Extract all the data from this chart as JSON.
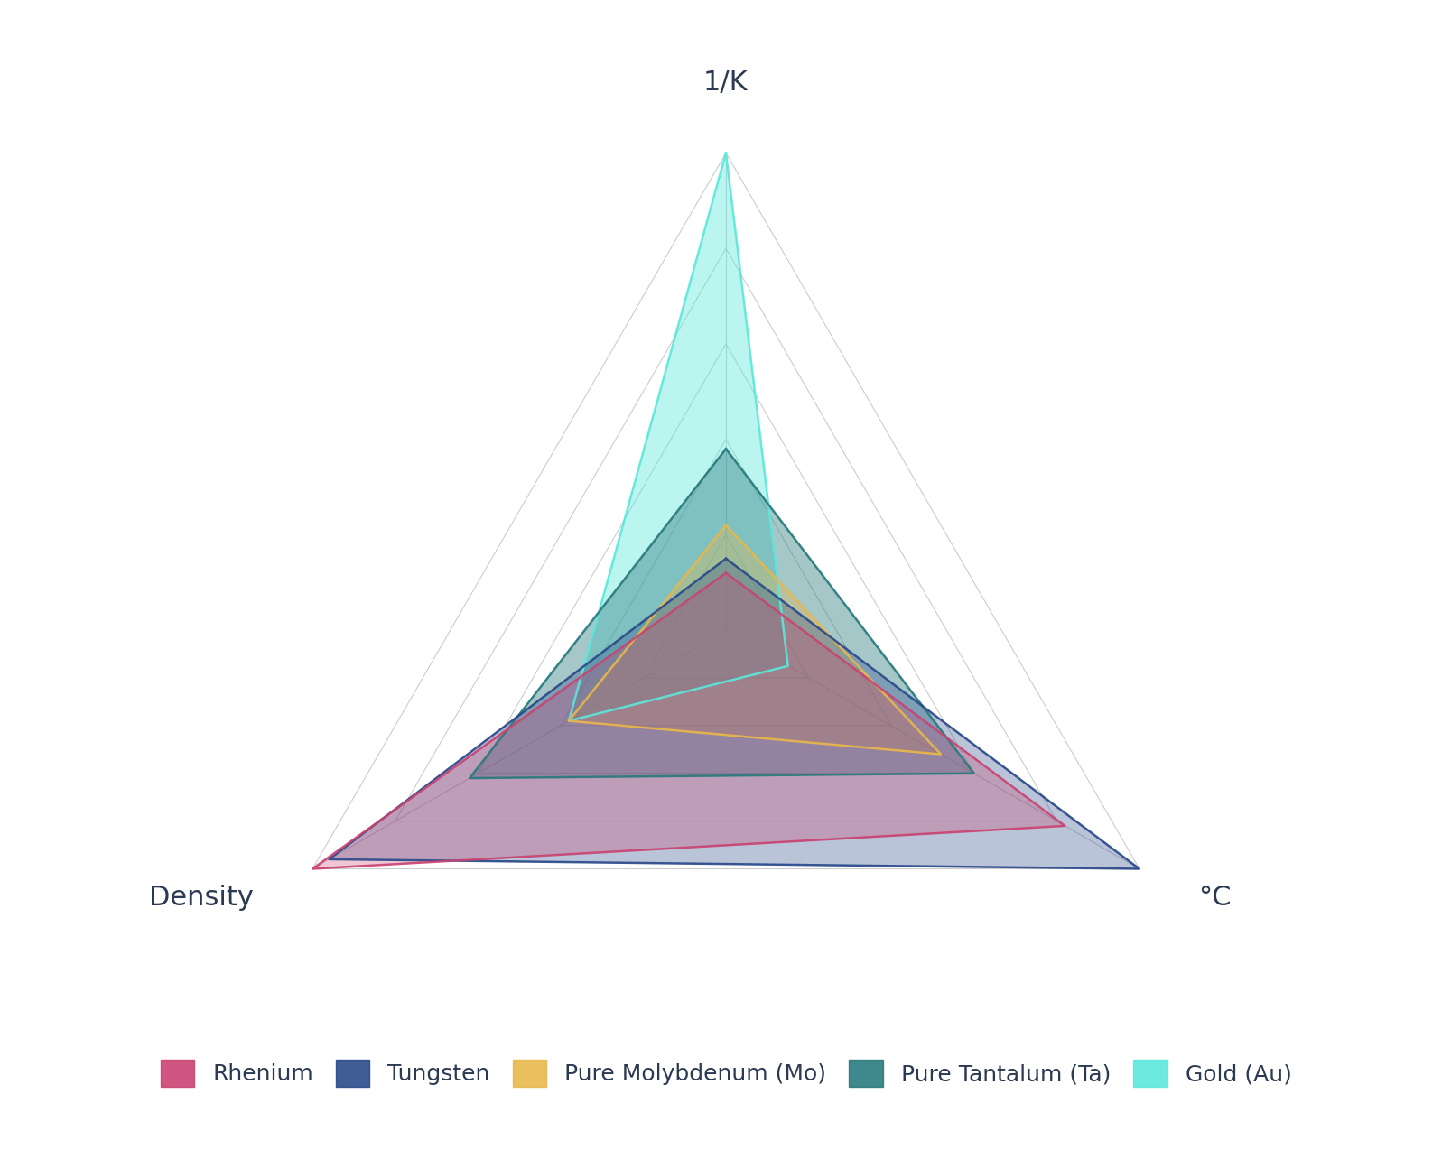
{
  "categories": [
    "1/K",
    "°C",
    "Density"
  ],
  "metals": [
    {
      "name": "Rhenium",
      "values": [
        0.12,
        0.82,
        1.0
      ],
      "color": "#C94472",
      "alpha": 0.3
    },
    {
      "name": "Tungsten",
      "values": [
        0.15,
        1.0,
        0.96
      ],
      "color": "#2B4A8B",
      "alpha": 0.32
    },
    {
      "name": "Pure Molybdenum (Mo)",
      "values": [
        0.22,
        0.52,
        0.38
      ],
      "color": "#E8B84B",
      "alpha": 0.35
    },
    {
      "name": "Pure Tantalum (Ta)",
      "values": [
        0.38,
        0.6,
        0.62
      ],
      "color": "#2A7B7E",
      "alpha": 0.42
    },
    {
      "name": "Gold (Au)",
      "values": [
        1.0,
        0.15,
        0.38
      ],
      "color": "#5DE8DC",
      "alpha": 0.42
    }
  ],
  "background_color": "#FFFFFF",
  "grid_color": "#CCCCCC",
  "label_color": "#2B3A52",
  "label_fontsize": 22,
  "legend_fontsize": 18,
  "angles_deg": [
    90,
    330,
    210
  ]
}
